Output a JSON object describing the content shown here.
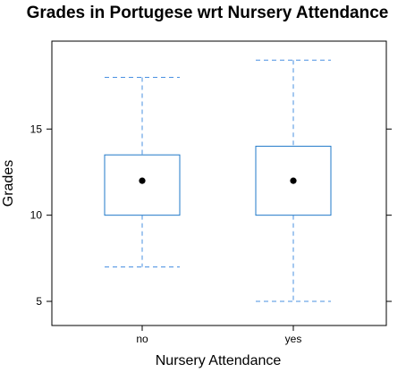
{
  "chart_data": {
    "type": "boxplot",
    "title": "Grades in Portugese wrt Nursery Attendance",
    "xlabel": "Nursery Attendance",
    "ylabel": "Grades",
    "categories": [
      "no",
      "yes"
    ],
    "boxes": [
      {
        "category": "no",
        "whisker_low": 7,
        "q1": 10,
        "median": 12,
        "q3": 13.5,
        "whisker_high": 18
      },
      {
        "category": "yes",
        "whisker_low": 5,
        "q1": 10,
        "median": 12,
        "q3": 14,
        "whisker_high": 19
      }
    ],
    "yticks": [
      5,
      10,
      15
    ],
    "ylim": [
      3.6,
      20.1
    ],
    "grid": false,
    "legend": "none",
    "colors": {
      "box": "#1f78c8",
      "whisker": "#4a90e2",
      "median_dot": "#000000",
      "frame": "#000000"
    }
  }
}
